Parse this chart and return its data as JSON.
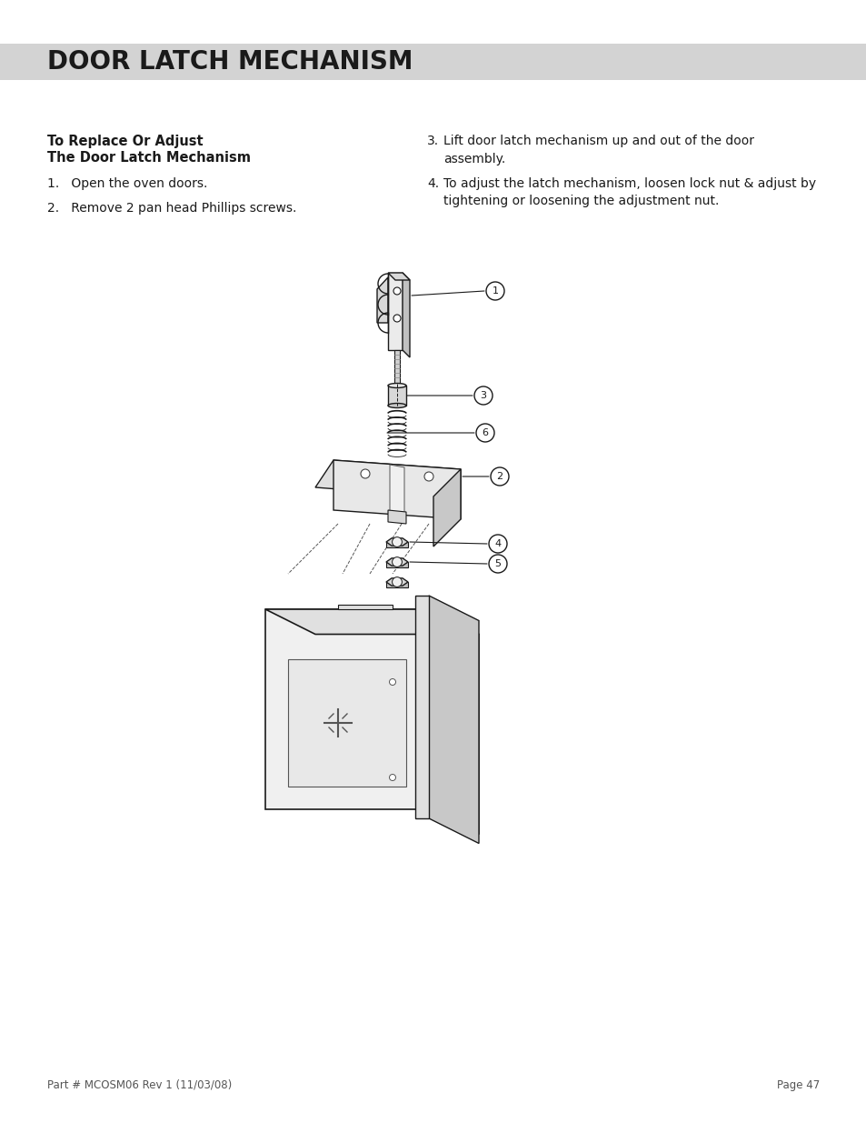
{
  "title": "DOOR LATCH MECHANISM",
  "title_bg_color": "#d3d3d3",
  "title_text_color": "#1a1a1a",
  "footer_left": "Part # MCOSM06 Rev 1 (11/03/08)",
  "footer_right": "Page 47",
  "bg_color": "#ffffff",
  "text_color": "#1a1a1a",
  "footer_color": "#555555",
  "subtitle_line1": "To Replace Or Adjust",
  "subtitle_line2": "The Door Latch Mechanism",
  "step1": "1.   Open the oven doors.",
  "step2": "2.   Remove 2 pan head Phillips screws.",
  "step3_num": "3.",
  "step3_text": "Lift door latch mechanism up and out of the door\nassembly.",
  "step4_num": "4.",
  "step4_text": "To adjust the latch mechanism, loosen lock nut & adjust by\ntightening or loosening the adjustment nut."
}
